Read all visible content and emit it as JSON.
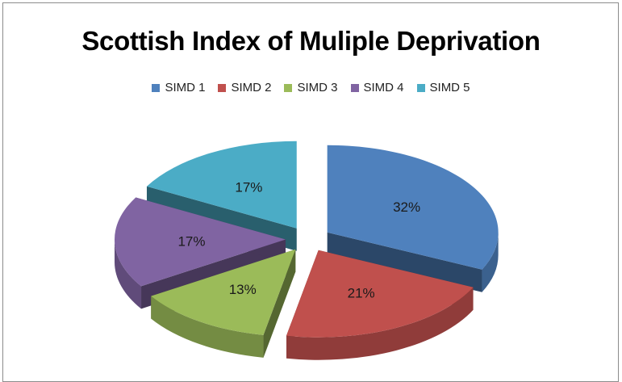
{
  "chart_data": {
    "type": "pie",
    "title": "Scottish Index of Muliple Deprivation",
    "legend_position": "top",
    "categories": [
      "SIMD 1",
      "SIMD 2",
      "SIMD 3",
      "SIMD 4",
      "SIMD 5"
    ],
    "values": [
      32,
      21,
      13,
      17,
      17
    ],
    "labels": [
      "32%",
      "21%",
      "13%",
      "17%",
      "17%"
    ],
    "colors": [
      "#4f81bd",
      "#c0504d",
      "#9bbb59",
      "#8064a2",
      "#4bacc6"
    ],
    "style": "3d-exploded"
  }
}
